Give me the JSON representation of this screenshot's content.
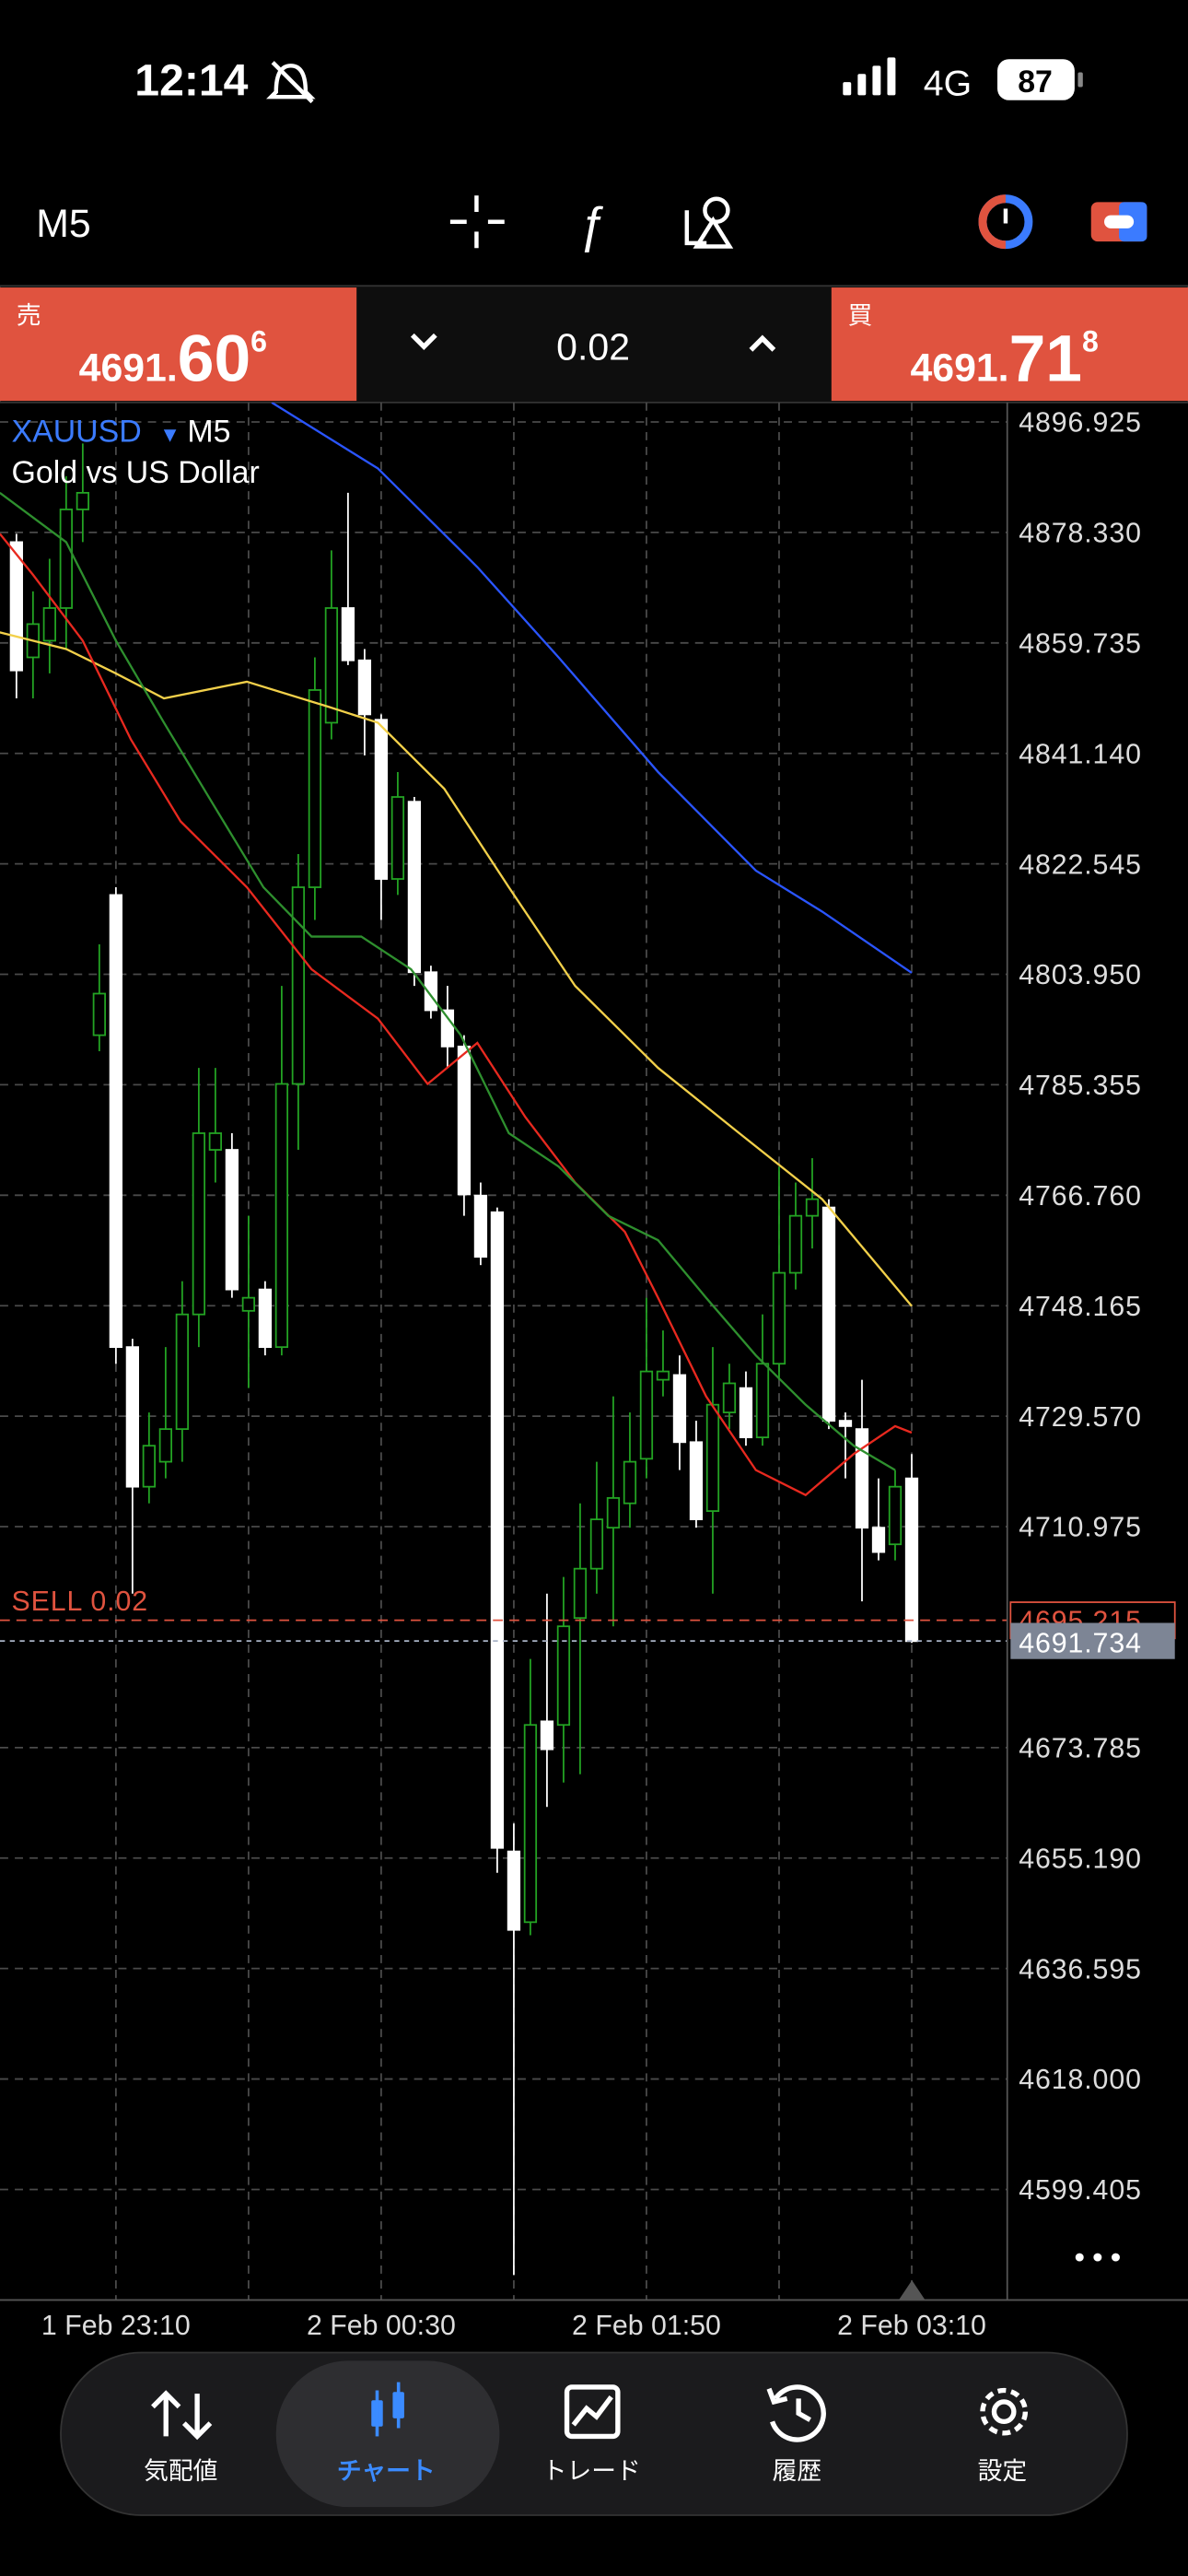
{
  "status_bar": {
    "time": "12:14",
    "network": "4G",
    "battery": "87"
  },
  "toolbar": {
    "timeframe": "M5"
  },
  "quote_panel": {
    "sell": {
      "label": "売",
      "prefix": "4691.",
      "main": "60",
      "pip": "6"
    },
    "volume": "0.02",
    "buy": {
      "label": "買",
      "prefix": "4691.",
      "main": "71",
      "pip": "8"
    }
  },
  "chart_data": {
    "type": "candlestick",
    "symbol": "XAUUSD",
    "timeframe": "M5",
    "description": "Gold vs US Dollar",
    "categories": [
      null,
      null,
      null,
      null,
      null,
      null,
      "1 Feb 23:10",
      null,
      null,
      null,
      null,
      null,
      null,
      null,
      null,
      null,
      null,
      null,
      null,
      null,
      null,
      null,
      "2 Feb 00:30",
      null,
      null,
      null,
      null,
      null,
      null,
      null,
      null,
      null,
      null,
      null,
      null,
      null,
      null,
      null,
      "2 Feb 01:50",
      null,
      null,
      null,
      null,
      null,
      null,
      null,
      null,
      null,
      null,
      null,
      null,
      null,
      null,
      null,
      "2 Feb 03:10"
    ],
    "open": [
      4876.7,
      4857.3,
      4860.1,
      4865.6,
      4882.2,
      4793.7,
      4817.3,
      4741.2,
      4717.7,
      4721.9,
      4727.4,
      4746.7,
      4774.4,
      4774.4,
      4747.3,
      4750.9,
      4741.2,
      4785.5,
      4818.6,
      4846.3,
      4865.6,
      4856.8,
      4846.8,
      4820.0,
      4833.0,
      4804.3,
      4797.9,
      4791.8,
      4766.7,
      4763.9,
      4656.3,
      4644.4,
      4678.2,
      4677.6,
      4695.6,
      4703.9,
      4710.8,
      4714.9,
      4722.4,
      4735.7,
      4736.5,
      4725.2,
      4713.6,
      4730.2,
      4734.3,
      4726.0,
      4738.4,
      4753.7,
      4763.3,
      4764.7,
      4728.8,
      4727.4,
      4710.8,
      4708.0,
      4719.1
    ],
    "high": [
      4878.1,
      4868.4,
      4873.9,
      4887.8,
      4893.3,
      4809.0,
      4818.6,
      4742.6,
      4730.2,
      4741.2,
      4752.3,
      4788.2,
      4788.2,
      4777.2,
      4763.3,
      4752.3,
      4802.0,
      4824.2,
      4857.3,
      4875.3,
      4885.0,
      4858.7,
      4847.7,
      4838.0,
      4833.8,
      4805.4,
      4802.0,
      4793.7,
      4768.9,
      4764.7,
      4661.0,
      4688.7,
      4699.7,
      4702.5,
      4714.9,
      4721.9,
      4732.9,
      4730.2,
      4749.5,
      4744.0,
      4739.8,
      4728.8,
      4741.2,
      4738.4,
      4737.1,
      4746.7,
      4771.6,
      4768.9,
      4773.0,
      4766.1,
      4730.2,
      4735.7,
      4719.1,
      4720.5,
      4723.2
    ],
    "low": [
      4850.4,
      4850.4,
      4854.6,
      4858.7,
      4876.7,
      4791.0,
      4738.4,
      4699.7,
      4714.9,
      4719.1,
      4721.9,
      4741.2,
      4768.9,
      4749.5,
      4734.3,
      4739.8,
      4739.8,
      4774.4,
      4813.1,
      4843.5,
      4856.0,
      4840.8,
      4813.1,
      4817.3,
      4802.0,
      4796.5,
      4788.2,
      4763.3,
      4755.0,
      4652.7,
      4585.0,
      4642.2,
      4663.8,
      4667.9,
      4669.3,
      4699.7,
      4694.2,
      4710.8,
      4719.1,
      4732.9,
      4720.5,
      4710.8,
      4699.7,
      4727.4,
      4724.6,
      4724.6,
      4735.7,
      4750.9,
      4757.8,
      4727.4,
      4719.1,
      4698.4,
      4705.3,
      4705.3,
      4691.4
    ],
    "close": [
      4855.1,
      4862.9,
      4865.6,
      4882.2,
      4885.0,
      4800.7,
      4741.2,
      4717.7,
      4724.6,
      4727.4,
      4746.7,
      4777.2,
      4777.2,
      4750.9,
      4749.5,
      4741.2,
      4785.5,
      4818.6,
      4851.8,
      4865.6,
      4856.8,
      4847.7,
      4820.0,
      4833.8,
      4804.3,
      4797.9,
      4791.8,
      4766.9,
      4756.4,
      4656.9,
      4643.1,
      4677.6,
      4673.5,
      4694.2,
      4703.9,
      4712.2,
      4715.8,
      4721.9,
      4737.1,
      4737.1,
      4725.2,
      4712.2,
      4731.5,
      4735.1,
      4726.0,
      4738.4,
      4753.7,
      4763.3,
      4766.1,
      4728.8,
      4727.9,
      4710.8,
      4706.7,
      4717.7,
      4691.7
    ],
    "up_color": "#23a323",
    "down_color": "#ffffff",
    "ylim": [
      4580.8,
      4900.2
    ],
    "yticks": [
      4896.925,
      {
        "value": 4878.33,
        "label": "4878.330"
      },
      4859.735,
      {
        "value": 4841.14,
        "label": "4841.140"
      },
      4822.545,
      {
        "value": 4803.95,
        "label": "4803.950"
      },
      4785.355,
      {
        "value": 4766.76,
        "label": "4766.760"
      },
      4748.165,
      {
        "value": 4729.57,
        "label": "4729.570"
      },
      4710.975,
      4673.785,
      {
        "value": 4655.19,
        "label": "4655.190"
      },
      4636.595,
      {
        "value": 4618,
        "label": "4618.000"
      },
      4599.405
    ],
    "grid": true,
    "indicators": [
      {
        "color": "#2a55ff",
        "x": [
          15.4,
          21.8,
          27.8,
          32.7,
          38.7,
          44.6,
          48.6,
          54
        ],
        "values": [
          4900.2,
          4889.1,
          4872.5,
          4857.3,
          4838.0,
          4821.4,
          4814.5,
          4804.2
        ]
      },
      {
        "color": "#f2d04a",
        "x": [
          -1,
          3,
          6,
          8.9,
          13.9,
          18.8,
          21.8,
          25.8,
          29.7,
          33.7,
          38.7,
          43.6,
          48.6,
          54
        ],
        "values": [
          4861.5,
          4858.7,
          4854.6,
          4850.4,
          4853.2,
          4849.0,
          4846.3,
          4835.2,
          4818.6,
          4802.0,
          4788.2,
          4777.2,
          4766.1,
          4748.1
        ]
      },
      {
        "color": "#e8291f",
        "x": [
          -1,
          1,
          4,
          6.9,
          9.9,
          13.9,
          17.8,
          21.8,
          24.8,
          27.8,
          30.7,
          33.7,
          36.7,
          38.7,
          41.6,
          44.6,
          47.6,
          50.5,
          53,
          54
        ],
        "values": [
          4878.1,
          4871.2,
          4860.1,
          4843.5,
          4829.7,
          4818.6,
          4804.8,
          4796.5,
          4785.5,
          4792.4,
          4779.9,
          4768.9,
          4760.6,
          4749.5,
          4732.9,
          4720.5,
          4716.3,
          4723.2,
          4727.9,
          4726.8
        ]
      },
      {
        "color": "#2e8f2e",
        "x": [
          -1,
          3,
          6,
          8.9,
          11.9,
          14.9,
          17.8,
          20.8,
          23.8,
          26.8,
          29.7,
          32.7,
          35.7,
          38.7,
          41.6,
          44.6,
          47.6,
          50.5,
          53
        ],
        "values": [
          4885.0,
          4876.7,
          4860.1,
          4846.3,
          4832.4,
          4818.6,
          4810.3,
          4810.3,
          4804.8,
          4793.7,
          4777.2,
          4771.6,
          4763.3,
          4759.2,
          4749.5,
          4739.8,
          4731.5,
          4724.6,
          4720.5
        ]
      }
    ],
    "price_lines": [
      {
        "label": "SELL 0.02",
        "value": 4695.215,
        "color": "#e0533f"
      },
      {
        "value": 4691.734,
        "color": "#a9b3c6"
      }
    ]
  },
  "nav": {
    "items": [
      "気配値",
      "チャート",
      "トレード",
      "履歴",
      "設定"
    ],
    "active": 1
  }
}
